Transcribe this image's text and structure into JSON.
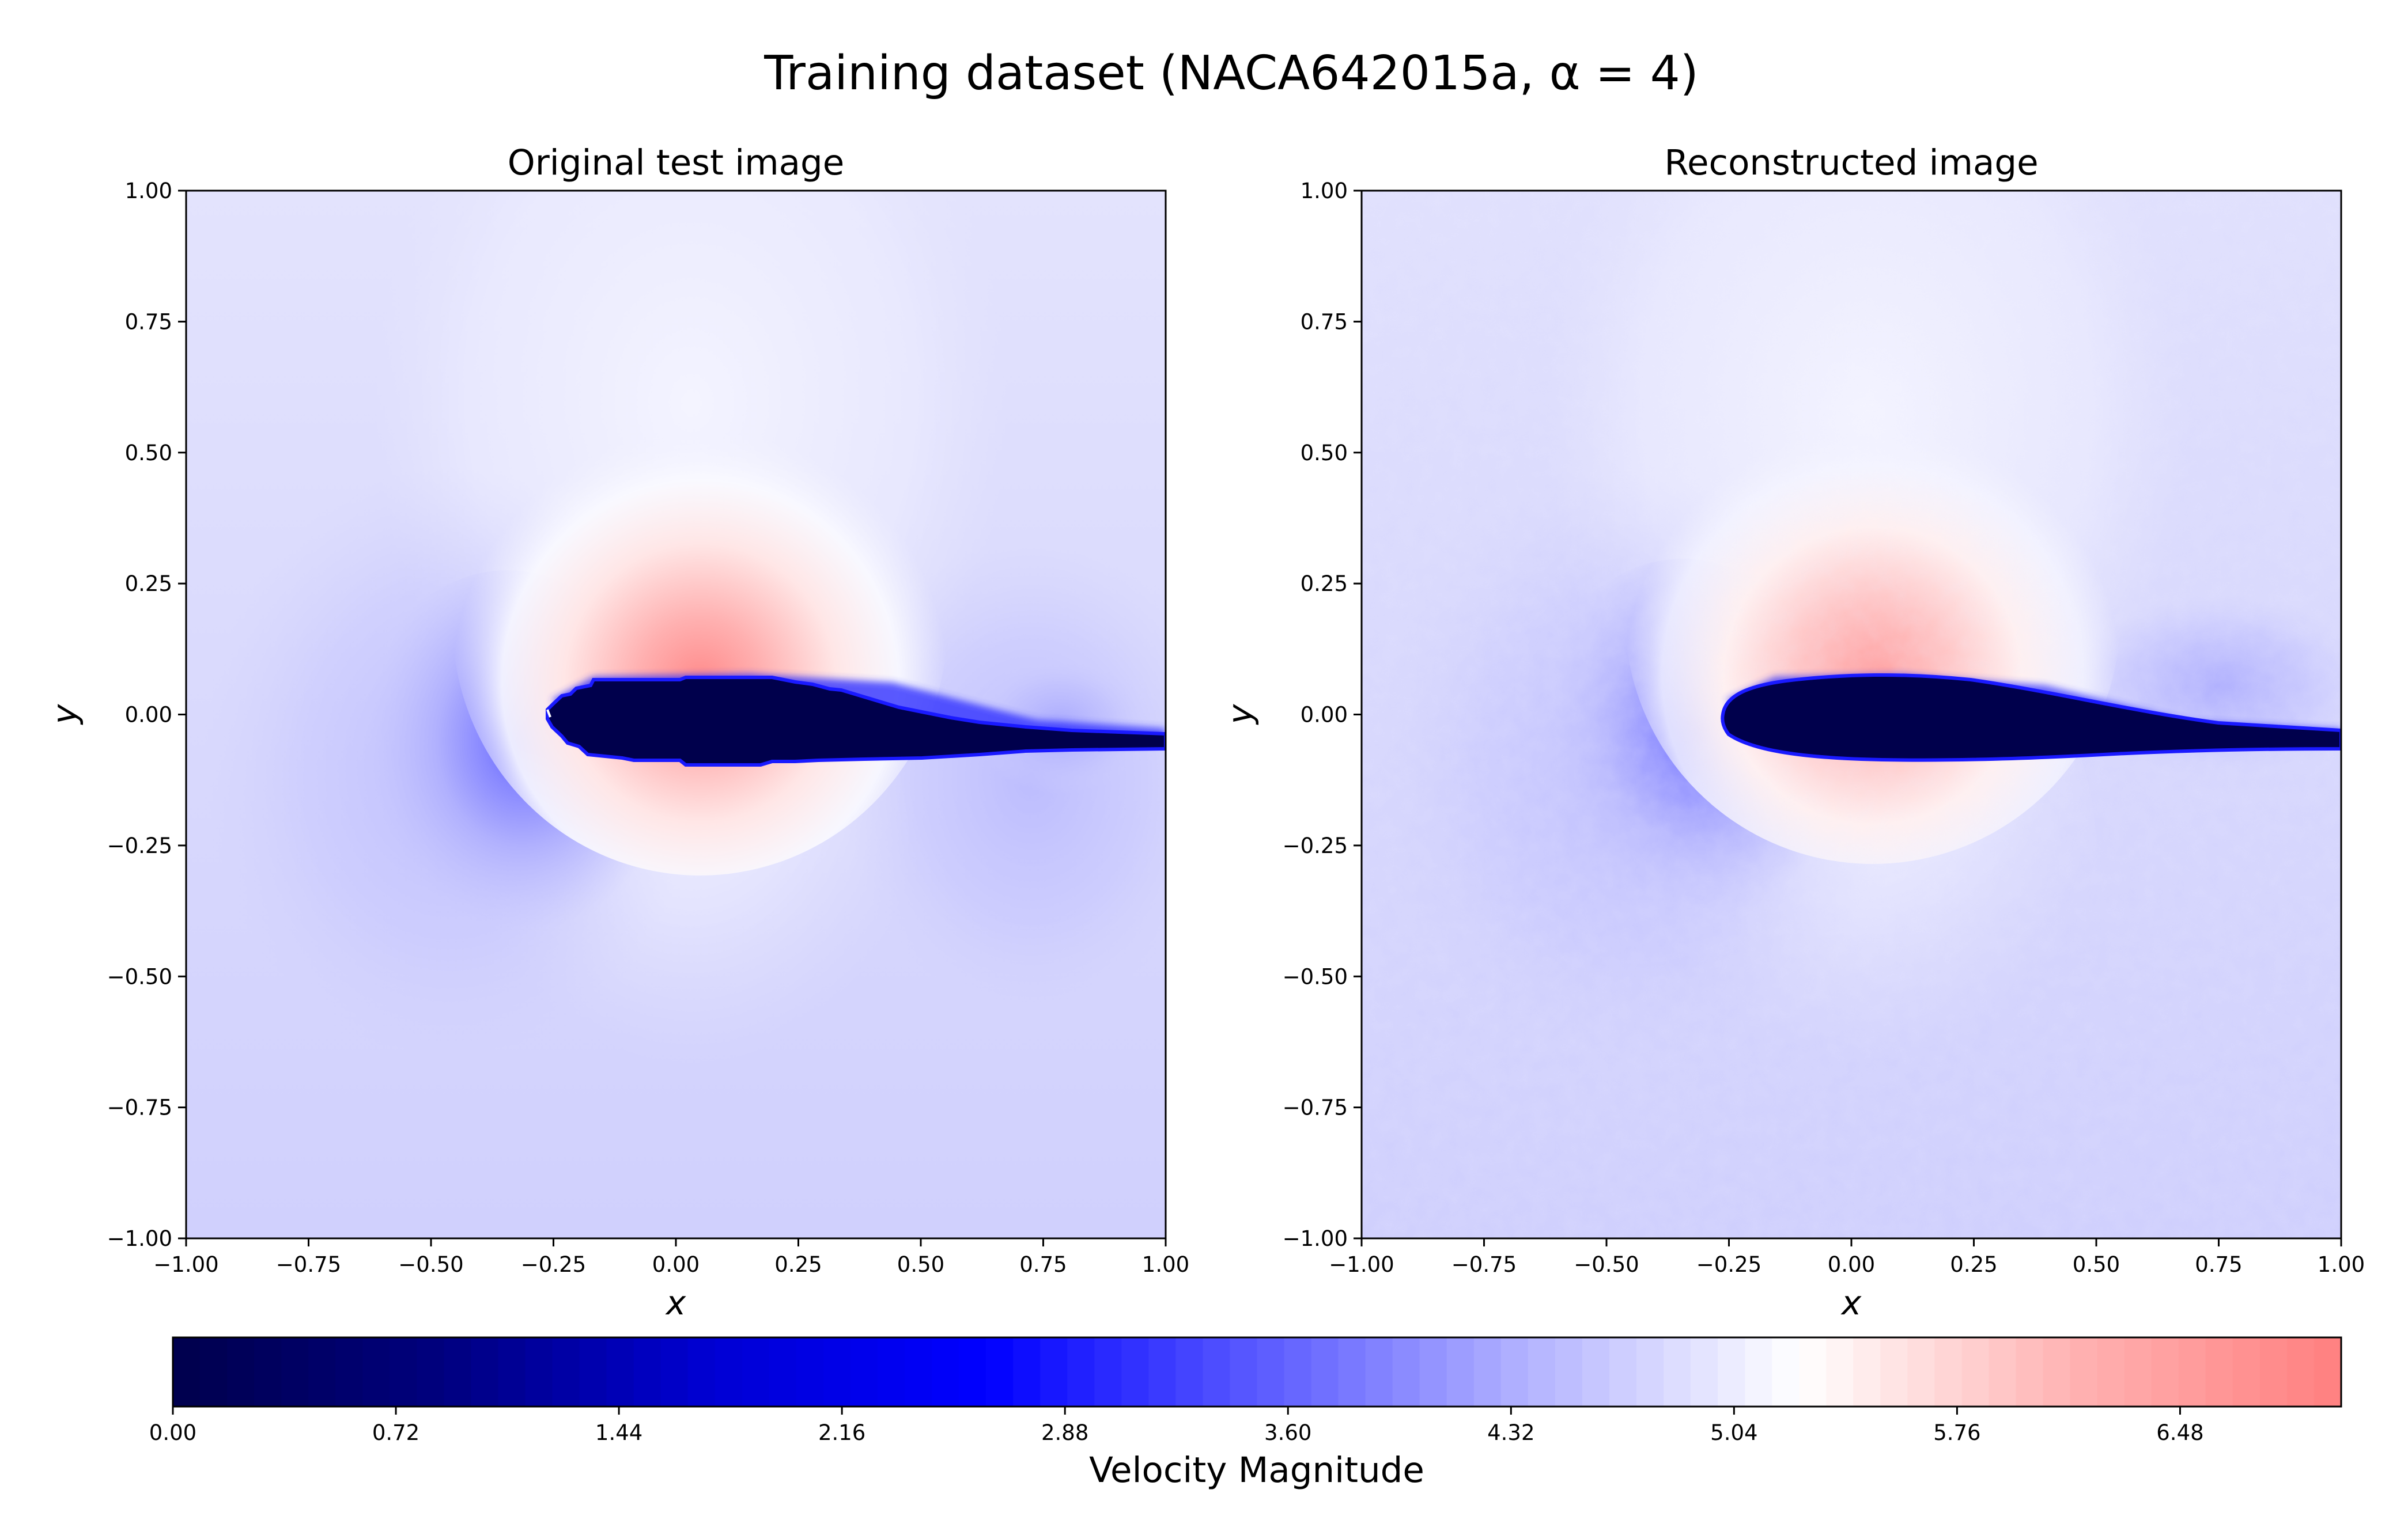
{
  "figure": {
    "title": "Training dataset (NACA642015a, α = 4)"
  },
  "chart_data": [
    {
      "type": "heatmap",
      "title": "Original test image",
      "xlabel": "x",
      "ylabel": "y",
      "xlim": [
        -1.0,
        1.0
      ],
      "ylim": [
        -1.0,
        1.0
      ],
      "xticks": [
        "−1.00",
        "−0.75",
        "−0.50",
        "−0.25",
        "0.00",
        "0.25",
        "0.50",
        "0.75",
        "1.00"
      ],
      "yticks": [
        "1.00",
        "0.75",
        "0.50",
        "0.25",
        "0.00",
        "−0.25",
        "−0.50",
        "−0.75",
        "−1.00"
      ],
      "field": "Velocity Magnitude",
      "freestream_value": 4.7,
      "peak_value": 6.7,
      "peak_location": [
        0.05,
        0.1
      ],
      "stagnation_point": [
        -0.26,
        0.0
      ],
      "airfoil": {
        "leading_edge": [
          -0.26,
          -0.01
        ],
        "trailing_edge": [
          1.0,
          -0.05
        ],
        "max_thickness_x": 0.1,
        "value": 0.0
      }
    },
    {
      "type": "heatmap",
      "title": "Reconstructed image",
      "xlabel": "x",
      "ylabel": "y",
      "xlim": [
        -1.0,
        1.0
      ],
      "ylim": [
        -1.0,
        1.0
      ],
      "xticks": [
        "−1.00",
        "−0.75",
        "−0.50",
        "−0.25",
        "0.00",
        "0.25",
        "0.50",
        "0.75",
        "1.00"
      ],
      "yticks": [
        "1.00",
        "0.75",
        "0.50",
        "0.25",
        "0.00",
        "−0.25",
        "−0.50",
        "−0.75",
        "−1.00"
      ],
      "field": "Velocity Magnitude",
      "freestream_value": 4.7,
      "peak_value": 6.3,
      "peak_location": [
        0.05,
        0.1
      ],
      "stagnation_point": [
        -0.26,
        0.0
      ],
      "airfoil": {
        "leading_edge": [
          -0.26,
          0.0
        ],
        "trailing_edge": [
          1.0,
          -0.05
        ],
        "max_thickness_x": 0.1,
        "value": 0.0
      }
    }
  ],
  "colorbar": {
    "label": "Velocity Magnitude",
    "range": [
      0.0,
      7.0
    ],
    "ticks": [
      "0.00",
      "0.72",
      "1.44",
      "2.16",
      "2.88",
      "3.60",
      "4.32",
      "5.04",
      "5.76",
      "6.48"
    ],
    "colormap": "seismic-truncated",
    "colors": [
      "#00004c",
      "#00007f",
      "#0000d4",
      "#0000ff",
      "#5a5aff",
      "#b3b3ff",
      "#ffffff",
      "#ffb3b3",
      "#ff7f7f"
    ]
  }
}
